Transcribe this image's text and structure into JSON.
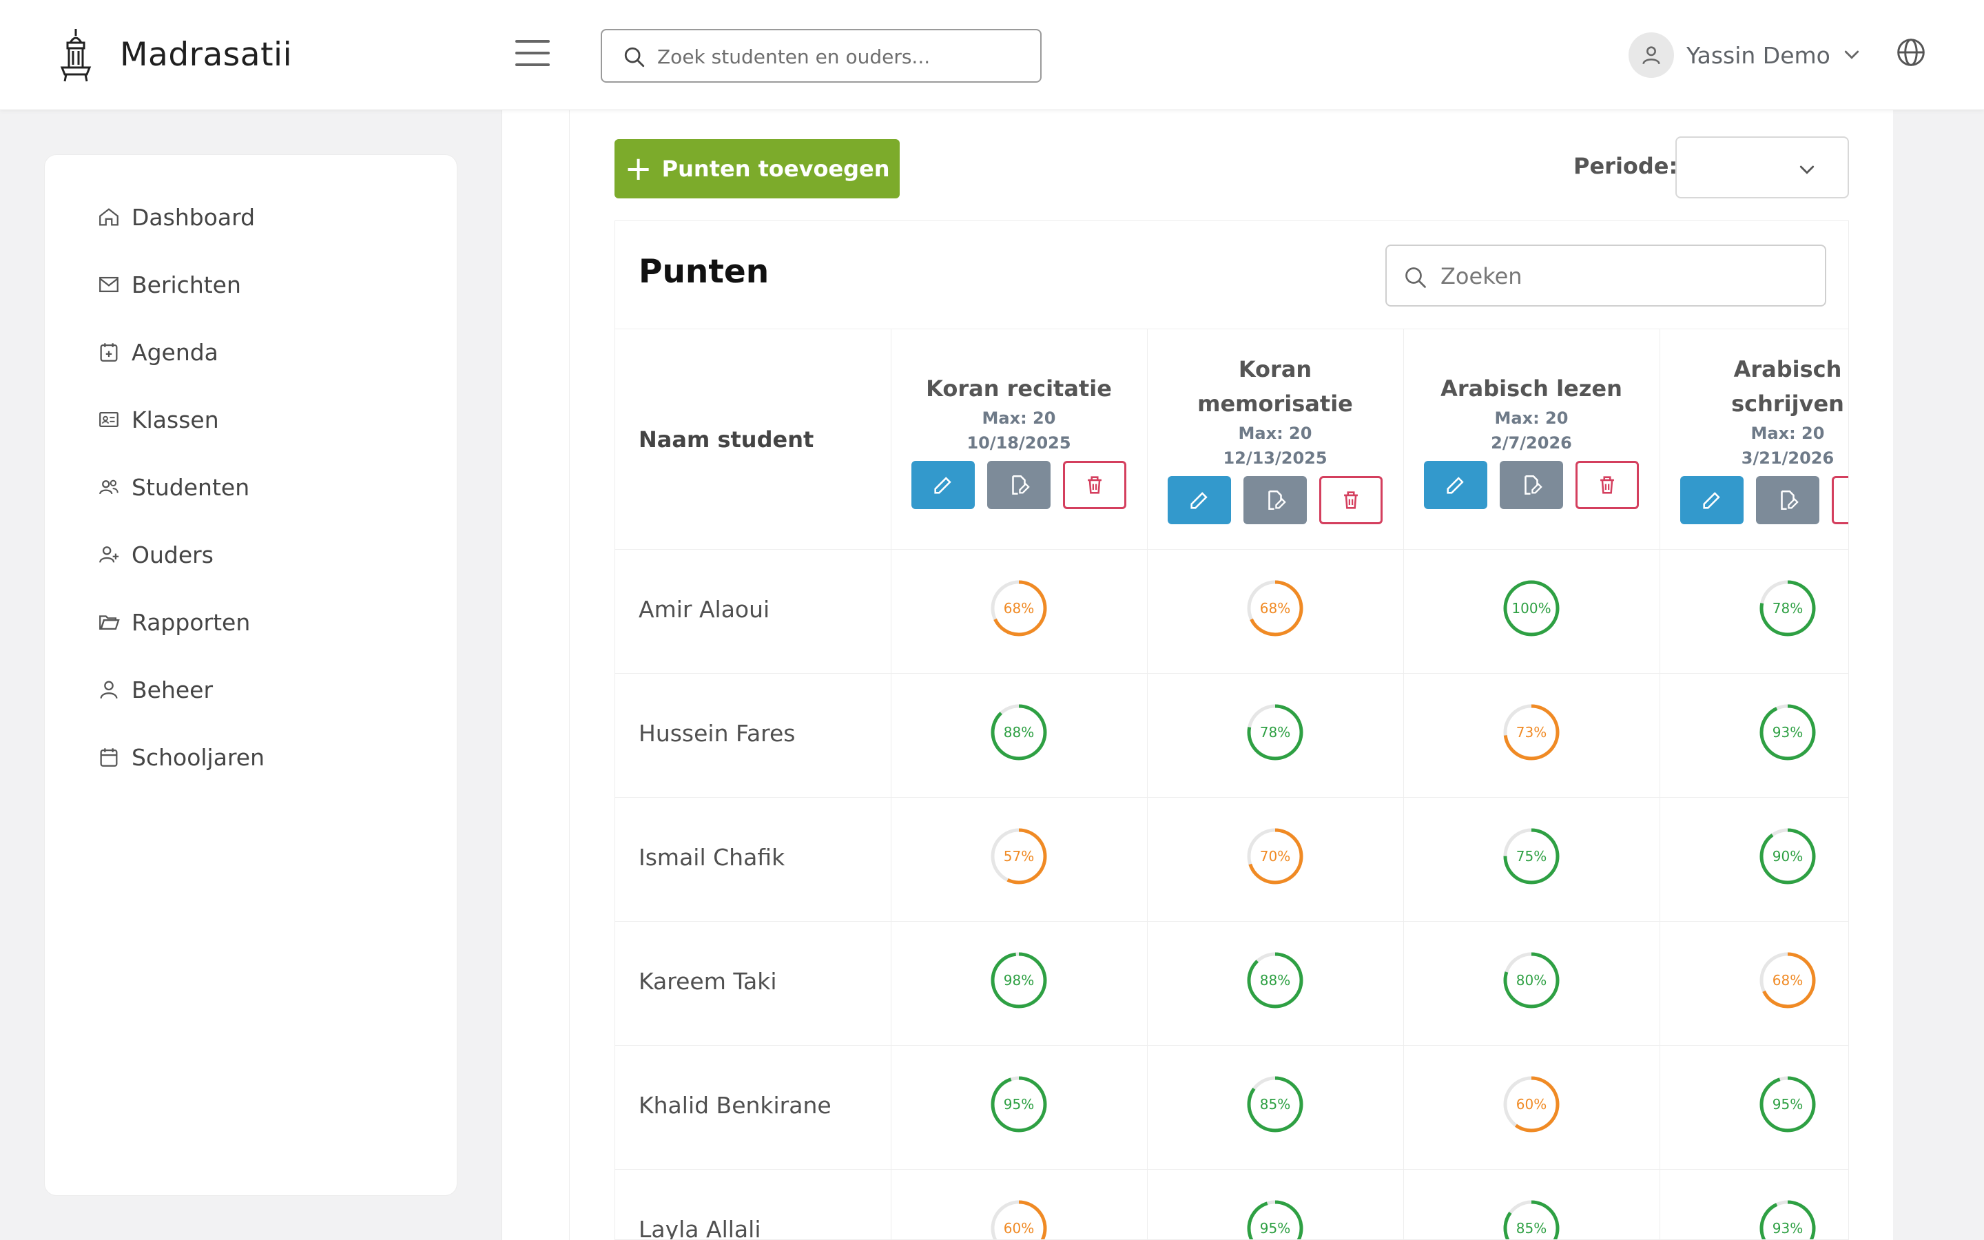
{
  "app": {
    "brand": "Madrasatii",
    "search_placeholder": "Zoek studenten en ouders...",
    "user_name": "Yassin Demo"
  },
  "sidebar": {
    "items": [
      {
        "label": "Dashboard",
        "icon": "home-icon"
      },
      {
        "label": "Berichten",
        "icon": "mail-icon"
      },
      {
        "label": "Agenda",
        "icon": "calendar-plus-icon"
      },
      {
        "label": "Klassen",
        "icon": "id-card-icon"
      },
      {
        "label": "Studenten",
        "icon": "users-icon"
      },
      {
        "label": "Ouders",
        "icon": "user-plus-icon"
      },
      {
        "label": "Rapporten",
        "icon": "folder-open-icon"
      },
      {
        "label": "Beheer",
        "icon": "user-icon"
      },
      {
        "label": "Schooljaren",
        "icon": "calendar-icon"
      }
    ]
  },
  "toolbar": {
    "add_label": "Punten toevoegen",
    "periode_label": "Periode:",
    "periode_value": ""
  },
  "card": {
    "title": "Punten",
    "search_placeholder": "Zoeken",
    "name_header": "Naam student"
  },
  "columns": [
    {
      "title_lines": [
        "Koran recitatie"
      ],
      "max": "Max: 20",
      "date": "10/18/2025"
    },
    {
      "title_lines": [
        "Koran",
        "memorisatie"
      ],
      "max": "Max: 20",
      "date": "12/13/2025"
    },
    {
      "title_lines": [
        "Arabisch lezen"
      ],
      "max": "Max: 20",
      "date": "2/7/2026"
    },
    {
      "title_lines": [
        "Arabisch",
        "schrijven"
      ],
      "max": "Max: 20",
      "date": "3/21/2026"
    }
  ],
  "students": [
    {
      "name": "Amir Alaoui",
      "scores": [
        68,
        68,
        100,
        78
      ]
    },
    {
      "name": "Hussein Fares",
      "scores": [
        88,
        78,
        73,
        93
      ]
    },
    {
      "name": "Ismail Chafik",
      "scores": [
        57,
        70,
        75,
        90
      ]
    },
    {
      "name": "Kareem Taki",
      "scores": [
        98,
        88,
        80,
        68
      ]
    },
    {
      "name": "Khalid Benkirane",
      "scores": [
        95,
        85,
        60,
        95
      ]
    },
    {
      "name": "Layla Allali",
      "scores": [
        60,
        95,
        85,
        93
      ]
    }
  ],
  "colors": {
    "good": "#2ea043",
    "warn": "#f08a24",
    "track": "#e6e6e6",
    "accent_green": "#7cab2b"
  }
}
